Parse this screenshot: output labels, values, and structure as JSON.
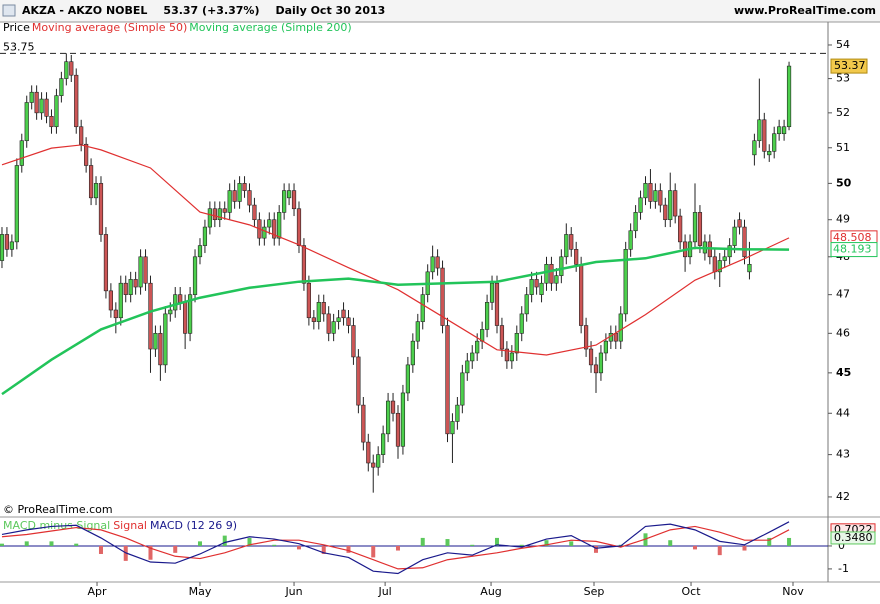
{
  "chart_data": [
    {
      "type": "candlestick",
      "title": "AKZA - AKZO NOBEL",
      "quote": "53.37 (+3.37%)",
      "period": "Daily  Oct 30 2013",
      "source": "www.ProRealTime.com",
      "copyright": "© ProRealTime.com",
      "name": "Price",
      "log": true,
      "up_color": "#4ccf4c",
      "down_color": "#cc5555",
      "ylim": [
        41.58,
        54.21
      ],
      "yticks": [
        42,
        43,
        44,
        45,
        46,
        47,
        48,
        49,
        50,
        51,
        52,
        53,
        54
      ],
      "xlim": [
        -0.4,
        166.87
      ],
      "xticks": [
        {
          "value": 19.2,
          "label": "Apr"
        },
        {
          "value": 40,
          "label": "May"
        },
        {
          "value": 59,
          "label": "Jun"
        },
        {
          "value": 77.4,
          "label": "Jul"
        },
        {
          "value": 98.8,
          "label": "Aug"
        },
        {
          "value": 119.6,
          "label": "Sep"
        },
        {
          "value": 139.2,
          "label": "Oct"
        },
        {
          "value": 159.8,
          "label": "Nov"
        }
      ],
      "high_line": 53.75,
      "ohlc": [
        [
          47.9,
          48.8,
          47.7,
          48.6
        ],
        [
          48.6,
          48.8,
          48.0,
          48.2
        ],
        [
          48.2,
          48.6,
          48.0,
          48.4
        ],
        [
          48.4,
          50.7,
          48.2,
          50.5
        ],
        [
          50.5,
          51.4,
          50.3,
          51.2
        ],
        [
          51.2,
          52.5,
          51.0,
          52.3
        ],
        [
          52.3,
          52.8,
          52.1,
          52.6
        ],
        [
          52.6,
          52.8,
          51.8,
          52.0
        ],
        [
          52.0,
          52.6,
          51.8,
          52.4
        ],
        [
          52.4,
          52.6,
          51.7,
          51.9
        ],
        [
          51.9,
          52.1,
          51.4,
          51.6
        ],
        [
          51.6,
          52.7,
          51.4,
          52.5
        ],
        [
          52.5,
          53.2,
          52.3,
          53.0
        ],
        [
          53.0,
          53.75,
          52.8,
          53.5
        ],
        [
          53.5,
          53.7,
          52.9,
          53.1
        ],
        [
          53.1,
          53.3,
          51.4,
          51.6
        ],
        [
          51.6,
          51.8,
          50.9,
          51.1
        ],
        [
          51.1,
          51.3,
          50.3,
          50.5
        ],
        [
          50.5,
          50.7,
          49.4,
          49.6
        ],
        [
          49.6,
          50.2,
          49.4,
          50.0
        ],
        [
          50.0,
          50.2,
          48.4,
          48.6
        ],
        [
          48.6,
          48.8,
          46.9,
          47.1
        ],
        [
          47.1,
          47.3,
          46.4,
          46.6
        ],
        [
          46.6,
          46.8,
          46.0,
          46.4
        ],
        [
          46.4,
          47.5,
          46.2,
          47.3
        ],
        [
          47.3,
          47.5,
          46.8,
          47.0
        ],
        [
          47.0,
          47.6,
          46.8,
          47.4
        ],
        [
          47.4,
          47.6,
          47.0,
          47.2
        ],
        [
          47.2,
          48.2,
          47.0,
          48.0
        ],
        [
          48.0,
          48.2,
          47.1,
          47.3
        ],
        [
          47.3,
          47.5,
          45.0,
          45.6
        ],
        [
          45.6,
          46.2,
          45.4,
          46.0
        ],
        [
          46.0,
          46.2,
          44.8,
          45.2
        ],
        [
          45.2,
          46.7,
          45.0,
          46.5
        ],
        [
          46.5,
          46.8,
          46.3,
          46.6
        ],
        [
          46.6,
          47.2,
          46.4,
          47.0
        ],
        [
          47.0,
          47.2,
          46.6,
          46.8
        ],
        [
          46.8,
          47.0,
          45.6,
          46.0
        ],
        [
          46.0,
          47.2,
          45.8,
          47.0
        ],
        [
          47.0,
          48.2,
          46.8,
          48.0
        ],
        [
          48.0,
          48.5,
          47.8,
          48.3
        ],
        [
          48.3,
          49.0,
          48.1,
          48.8
        ],
        [
          48.8,
          49.5,
          48.6,
          49.3
        ],
        [
          49.3,
          49.5,
          48.8,
          49.0
        ],
        [
          49.0,
          49.5,
          48.8,
          49.3
        ],
        [
          49.3,
          49.5,
          49.0,
          49.2
        ],
        [
          49.2,
          50.0,
          49.0,
          49.8
        ],
        [
          49.8,
          50.1,
          49.3,
          49.5
        ],
        [
          49.5,
          50.2,
          49.3,
          50.0
        ],
        [
          50.0,
          50.2,
          49.6,
          49.8
        ],
        [
          49.8,
          50.0,
          49.2,
          49.4
        ],
        [
          49.4,
          49.6,
          48.8,
          49.0
        ],
        [
          49.0,
          49.2,
          48.3,
          48.5
        ],
        [
          48.5,
          49.0,
          48.3,
          48.8
        ],
        [
          48.8,
          49.2,
          48.6,
          49.0
        ],
        [
          49.0,
          49.2,
          48.3,
          48.5
        ],
        [
          48.5,
          49.4,
          48.3,
          49.2
        ],
        [
          49.2,
          50.0,
          49.0,
          49.8
        ],
        [
          49.6,
          50.0,
          49.4,
          49.8
        ],
        [
          49.8,
          50.0,
          49.1,
          49.3
        ],
        [
          49.3,
          49.5,
          48.1,
          48.3
        ],
        [
          48.3,
          48.5,
          47.1,
          47.3
        ],
        [
          47.3,
          47.5,
          46.2,
          46.4
        ],
        [
          46.4,
          46.6,
          46.1,
          46.3
        ],
        [
          46.3,
          47.0,
          46.1,
          46.8
        ],
        [
          46.8,
          47.0,
          46.3,
          46.5
        ],
        [
          46.5,
          46.7,
          45.8,
          46.0
        ],
        [
          46.0,
          46.5,
          45.8,
          46.3
        ],
        [
          46.3,
          46.6,
          46.1,
          46.4
        ],
        [
          46.6,
          46.8,
          46.2,
          46.4
        ],
        [
          46.4,
          46.6,
          46.0,
          46.2
        ],
        [
          46.2,
          46.4,
          45.2,
          45.4
        ],
        [
          45.4,
          45.6,
          44.0,
          44.2
        ],
        [
          44.2,
          44.4,
          43.1,
          43.3
        ],
        [
          43.3,
          43.5,
          42.6,
          42.8
        ],
        [
          42.8,
          43.0,
          42.1,
          42.7
        ],
        [
          42.7,
          43.2,
          42.5,
          43.0
        ],
        [
          43.0,
          43.7,
          42.8,
          43.5
        ],
        [
          43.5,
          44.5,
          43.3,
          44.3
        ],
        [
          44.3,
          44.5,
          43.8,
          44.0
        ],
        [
          44.0,
          44.2,
          42.9,
          43.2
        ],
        [
          43.2,
          44.7,
          43.0,
          44.5
        ],
        [
          44.5,
          45.4,
          44.3,
          45.2
        ],
        [
          45.2,
          46.0,
          45.0,
          45.8
        ],
        [
          45.8,
          46.5,
          45.6,
          46.3
        ],
        [
          46.3,
          47.2,
          46.1,
          47.0
        ],
        [
          47.0,
          47.8,
          46.8,
          47.6
        ],
        [
          47.6,
          48.3,
          47.4,
          48.0
        ],
        [
          48.0,
          48.2,
          47.5,
          47.7
        ],
        [
          47.7,
          47.9,
          46.0,
          46.2
        ],
        [
          46.2,
          46.4,
          43.3,
          43.5
        ],
        [
          43.5,
          44.0,
          42.8,
          43.8
        ],
        [
          43.8,
          44.4,
          43.6,
          44.2
        ],
        [
          44.2,
          45.2,
          44.0,
          45.0
        ],
        [
          45.0,
          45.5,
          44.8,
          45.3
        ],
        [
          45.3,
          45.7,
          45.1,
          45.5
        ],
        [
          45.5,
          46.0,
          45.3,
          45.8
        ],
        [
          45.8,
          46.3,
          45.6,
          46.1
        ],
        [
          46.1,
          47.0,
          45.9,
          46.8
        ],
        [
          46.8,
          47.5,
          46.6,
          47.3
        ],
        [
          47.3,
          47.5,
          46.0,
          46.2
        ],
        [
          46.2,
          46.4,
          45.4,
          45.6
        ],
        [
          45.6,
          45.8,
          45.1,
          45.3
        ],
        [
          45.3,
          45.7,
          45.1,
          45.5
        ],
        [
          45.5,
          46.2,
          45.3,
          46.0
        ],
        [
          46.0,
          46.7,
          45.8,
          46.5
        ],
        [
          46.5,
          47.2,
          46.3,
          47.0
        ],
        [
          47.0,
          47.6,
          46.8,
          47.4
        ],
        [
          47.4,
          47.6,
          47.0,
          47.2
        ],
        [
          47.0,
          47.5,
          46.8,
          47.3
        ],
        [
          47.3,
          48.0,
          47.1,
          47.8
        ],
        [
          47.8,
          48.0,
          47.1,
          47.3
        ],
        [
          47.3,
          47.7,
          47.1,
          47.5
        ],
        [
          47.5,
          48.2,
          47.3,
          48.0
        ],
        [
          48.0,
          48.9,
          47.8,
          48.6
        ],
        [
          48.6,
          48.8,
          48.0,
          48.2
        ],
        [
          48.2,
          48.4,
          47.6,
          47.8
        ],
        [
          47.8,
          48.0,
          46.0,
          46.2
        ],
        [
          46.2,
          46.4,
          45.4,
          45.6
        ],
        [
          45.6,
          45.8,
          45.0,
          45.2
        ],
        [
          45.2,
          45.4,
          44.5,
          45.0
        ],
        [
          45.0,
          45.7,
          44.8,
          45.5
        ],
        [
          45.5,
          46.0,
          45.3,
          45.8
        ],
        [
          45.8,
          46.2,
          45.6,
          46.0
        ],
        [
          46.0,
          46.2,
          45.6,
          45.8
        ],
        [
          45.8,
          46.7,
          45.6,
          46.5
        ],
        [
          46.5,
          48.4,
          46.3,
          48.2
        ],
        [
          48.2,
          48.9,
          48.0,
          48.7
        ],
        [
          48.7,
          49.4,
          48.5,
          49.2
        ],
        [
          49.2,
          49.8,
          49.0,
          49.6
        ],
        [
          49.6,
          50.2,
          49.4,
          50.0
        ],
        [
          50.0,
          50.4,
          49.3,
          49.5
        ],
        [
          49.5,
          50.0,
          49.3,
          49.8
        ],
        [
          49.8,
          50.0,
          49.2,
          49.4
        ],
        [
          49.4,
          49.6,
          48.8,
          49.0
        ],
        [
          49.0,
          50.3,
          48.8,
          49.8
        ],
        [
          49.8,
          50.0,
          48.9,
          49.1
        ],
        [
          49.1,
          49.3,
          48.2,
          48.4
        ],
        [
          48.4,
          48.6,
          47.6,
          48.0
        ],
        [
          48.0,
          48.6,
          47.8,
          48.4
        ],
        [
          48.4,
          50.0,
          48.2,
          49.2
        ],
        [
          49.2,
          49.4,
          48.1,
          48.3
        ],
        [
          48.1,
          48.6,
          47.9,
          48.4
        ],
        [
          48.4,
          48.6,
          47.8,
          48.0
        ],
        [
          48.0,
          48.2,
          47.4,
          47.6
        ],
        [
          47.6,
          48.1,
          47.2,
          47.9
        ],
        [
          47.9,
          48.2,
          47.7,
          48.0
        ],
        [
          48.0,
          48.5,
          47.8,
          48.3
        ],
        [
          48.3,
          49.0,
          48.1,
          48.8
        ],
        [
          49.0,
          49.2,
          48.6,
          48.8
        ],
        [
          48.8,
          49.0,
          47.8,
          48.0
        ],
        [
          47.6,
          48.4,
          47.4,
          47.8
        ],
        [
          50.8,
          51.4,
          50.5,
          51.2
        ],
        [
          51.2,
          53.0,
          51.0,
          51.8
        ],
        [
          51.8,
          52.0,
          50.7,
          50.9
        ],
        [
          50.8,
          51.1,
          50.6,
          50.9
        ],
        [
          50.9,
          51.6,
          50.7,
          51.4
        ],
        [
          51.4,
          51.8,
          51.2,
          51.6
        ],
        [
          51.4,
          51.8,
          51.2,
          51.6
        ],
        [
          51.6,
          53.5,
          51.5,
          53.37
        ]
      ],
      "series": [
        {
          "name": "Moving average (Simple 50)",
          "color": "#e03030",
          "x": [
            0,
            10,
            16,
            20,
            30,
            40,
            50,
            60,
            70,
            80,
            90,
            100,
            110,
            120,
            130,
            140,
            150,
            159
          ],
          "values": [
            50.52,
            50.99,
            51.08,
            50.94,
            50.43,
            49.21,
            48.86,
            48.32,
            47.71,
            47.13,
            46.35,
            45.58,
            45.45,
            45.7,
            46.48,
            47.38,
            47.95,
            48.508
          ]
        },
        {
          "name": "Moving average (Simple 200)",
          "color": "#22c45a",
          "x": [
            0,
            10,
            20,
            30,
            40,
            50,
            60,
            70,
            80,
            90,
            100,
            110,
            120,
            130,
            140,
            150,
            159
          ],
          "values": [
            44.47,
            45.33,
            46.1,
            46.56,
            46.92,
            47.18,
            47.34,
            47.42,
            47.26,
            47.3,
            47.34,
            47.6,
            47.86,
            47.96,
            48.24,
            48.2,
            48.193
          ]
        }
      ]
    },
    {
      "type": "macd",
      "ylim": [
        -1.57,
        1.13
      ],
      "yticks": [
        -1,
        0
      ],
      "xlim": [
        -0.4,
        166.87
      ],
      "x": [
        0,
        5,
        10,
        15,
        20,
        25,
        30,
        35,
        40,
        45,
        50,
        55,
        60,
        65,
        70,
        75,
        80,
        85,
        90,
        95,
        100,
        105,
        110,
        115,
        120,
        125,
        130,
        135,
        140,
        145,
        150,
        155,
        159
      ],
      "series": [
        {
          "name": "MACD minus Signal",
          "color": "#5cc85c",
          "negative_color": "#e06666",
          "kind": "bar",
          "values": [
            0.1,
            0.2,
            0.2,
            0.1,
            -0.35,
            -0.65,
            -0.6,
            -0.3,
            0.2,
            0.45,
            0.35,
            0.05,
            -0.15,
            -0.35,
            -0.3,
            -0.5,
            -0.2,
            0.35,
            0.3,
            0.05,
            0.35,
            0.05,
            0.25,
            0.2,
            -0.3,
            0.05,
            0.55,
            0.25,
            -0.15,
            -0.4,
            -0.2,
            0.35,
            0.348
          ],
          "value_labels": [
            null,
            null,
            null,
            null,
            null,
            null,
            null,
            null,
            null,
            null,
            null,
            null,
            null,
            null,
            null,
            null,
            null,
            null,
            null,
            null,
            null,
            null,
            null,
            null,
            null,
            null,
            null,
            null,
            null,
            null,
            null,
            null,
            "0.3480"
          ]
        },
        {
          "name": "Signal",
          "color": "#e03030",
          "kind": "line",
          "values": [
            0.4,
            0.5,
            0.65,
            0.8,
            0.7,
            0.35,
            -0.1,
            -0.45,
            -0.55,
            -0.3,
            0.05,
            0.25,
            0.25,
            0.05,
            -0.2,
            -0.6,
            -1.0,
            -0.95,
            -0.6,
            -0.45,
            -0.3,
            -0.1,
            0.05,
            0.25,
            0.2,
            -0.05,
            0.3,
            0.7,
            0.85,
            0.6,
            0.25,
            0.25,
            0.7022
          ]
        },
        {
          "name": "MACD (12 26 9)",
          "color": "#1a1a8c",
          "kind": "line",
          "values": [
            0.5,
            0.7,
            0.85,
            0.9,
            0.35,
            -0.3,
            -0.7,
            -0.75,
            -0.35,
            0.15,
            0.4,
            0.3,
            0.1,
            -0.3,
            -0.5,
            -1.1,
            -1.2,
            -0.6,
            -0.3,
            -0.4,
            0.05,
            -0.05,
            0.3,
            0.45,
            -0.1,
            0,
            0.85,
            0.95,
            0.7,
            0.2,
            0.05,
            0.6,
            1.0502
          ]
        }
      ]
    }
  ]
}
